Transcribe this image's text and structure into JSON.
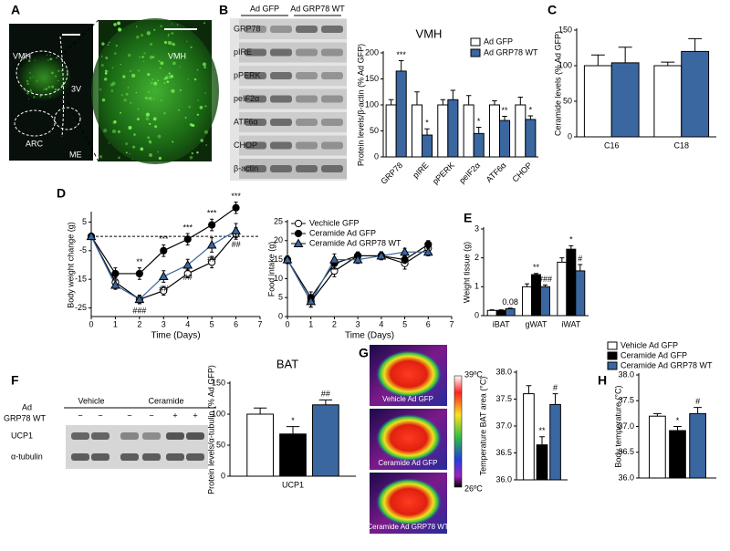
{
  "panel_labels": [
    "A",
    "B",
    "C",
    "D",
    "E",
    "F",
    "G",
    "H"
  ],
  "panel_a": {
    "labels": [
      "VMH",
      "3V",
      "ARC",
      "ME"
    ],
    "zoom_label": "VMH"
  },
  "blot_b": {
    "groups": [
      "Ad GFP",
      "Ad GRP78 WT"
    ],
    "rows": [
      "GRP78",
      "pIRE",
      "pPERK",
      "peIF2α",
      "ATF6α",
      "CHOP",
      "β-actin"
    ]
  },
  "blot_f": {
    "treatment": [
      "Ad",
      "GRP78 WT"
    ],
    "groups": [
      "Vehicle",
      "Ceramide"
    ],
    "signs": [
      "−",
      "−",
      "−",
      "−",
      "+",
      "+"
    ],
    "rows": [
      "UCP1",
      "α-tubulin"
    ]
  },
  "thermal_g": {
    "labels": [
      "Vehicle Ad GFP",
      "Ceramide Ad GFP",
      "Ceramide Ad GRP78 WT"
    ],
    "scale": [
      "39ºC",
      "26ºC"
    ]
  },
  "chart_data": [
    {
      "type": "bar",
      "title": "VMH",
      "ylabel": "Protein levels/β-actin (% Ad GFP)",
      "categories": [
        "GRP78",
        "pIRE",
        "pPERK",
        "peIF2α",
        "ATF6α",
        "CHOP"
      ],
      "series": [
        {
          "name": "Ad GFP",
          "color": "#ffffff",
          "values": [
            100,
            100,
            100,
            100,
            100,
            100
          ],
          "errors": [
            10,
            25,
            10,
            18,
            8,
            15
          ]
        },
        {
          "name": "Ad GRP78 WT",
          "color": "#3a67a0",
          "values": [
            165,
            42,
            110,
            45,
            70,
            72
          ],
          "errors": [
            20,
            12,
            18,
            12,
            8,
            7
          ],
          "sig": [
            "***",
            "*",
            null,
            "*",
            "**",
            "*"
          ]
        }
      ],
      "ylim": [
        0,
        200
      ],
      "yticks": [
        0,
        50,
        100,
        150,
        200
      ],
      "legend": "upper right",
      "rotate_labels": true
    },
    {
      "type": "bar",
      "ylabel": "Ceramide levels (% Ad GFP)",
      "categories": [
        "C16",
        "C18"
      ],
      "series": [
        {
          "color": "#ffffff",
          "values": [
            100,
            100
          ],
          "errors": [
            15,
            5
          ]
        },
        {
          "color": "#3a67a0",
          "values": [
            104,
            120
          ],
          "errors": [
            22,
            18
          ]
        }
      ],
      "ylim": [
        0,
        150
      ],
      "yticks": [
        0,
        50,
        100,
        150
      ]
    },
    {
      "type": "line",
      "ylabel": "Body weight change (g)",
      "xlabel": "Time (Days)",
      "x": [
        0,
        1,
        2,
        3,
        4,
        5,
        6
      ],
      "xlim": [
        0,
        7
      ],
      "xticks": [
        0,
        1,
        2,
        3,
        4,
        5,
        6,
        7
      ],
      "ylim": [
        -28,
        8
      ],
      "yticks": [
        -25,
        -15,
        -5,
        5
      ],
      "reference_line": 0,
      "series": [
        {
          "color": "#ffffff",
          "marker": "circle",
          "values": [
            0,
            -16,
            -22,
            -19,
            -13,
            -9,
            1
          ],
          "errors": [
            0,
            1.5,
            1.5,
            1.5,
            1.5,
            2,
            2
          ]
        },
        {
          "color": "#000000",
          "marker": "circle",
          "values": [
            0,
            -13,
            -13,
            -5,
            -1,
            4,
            10
          ],
          "errors": [
            0,
            2,
            2,
            2,
            2,
            2,
            2
          ],
          "sig_above": [
            null,
            null,
            "**",
            "***",
            "***",
            "***",
            "***"
          ]
        },
        {
          "color": "#3a67a0",
          "marker": "triangle",
          "values": [
            0,
            -17,
            -22,
            -14,
            -10,
            -3,
            2
          ],
          "errors": [
            0,
            1.5,
            1.5,
            2,
            2,
            2.5,
            2.5
          ],
          "sig_below": [
            null,
            null,
            "###",
            "##",
            "##",
            "##",
            "##"
          ]
        }
      ]
    },
    {
      "type": "line",
      "ylabel": "Food intake (g)",
      "xlabel": "Time (Days)",
      "x": [
        0,
        1,
        2,
        3,
        4,
        5,
        6
      ],
      "xlim": [
        0,
        7
      ],
      "xticks": [
        0,
        1,
        2,
        3,
        4,
        5,
        6,
        7
      ],
      "ylim": [
        0,
        25
      ],
      "yticks": [
        0,
        5,
        10,
        15,
        20,
        25
      ],
      "legend": "upper left",
      "series": [
        {
          "name": "Vechicle GFP",
          "color": "#ffffff",
          "marker": "circle",
          "values": [
            15,
            4,
            12,
            16,
            16,
            14,
            18
          ],
          "errors": [
            1,
            1.5,
            1.5,
            1,
            1,
            1.5,
            1
          ]
        },
        {
          "name": "Ceramide Ad GFP",
          "color": "#000000",
          "marker": "circle",
          "values": [
            15,
            5,
            14,
            16,
            16,
            15,
            19
          ],
          "errors": [
            1,
            1.5,
            1.5,
            1,
            1,
            1,
            1
          ]
        },
        {
          "name": "Ceramide Ad GRP78 WT",
          "color": "#3a67a0",
          "marker": "triangle",
          "values": [
            15,
            4,
            15,
            15,
            16,
            17,
            17
          ],
          "errors": [
            1,
            1.5,
            1.5,
            1,
            1,
            1,
            1
          ]
        }
      ]
    },
    {
      "type": "bar",
      "ylabel": "Weight tissue (g)",
      "categories": [
        "iBAT",
        "gWAT",
        "iWAT"
      ],
      "ylim": [
        0,
        3
      ],
      "yticks": [
        0,
        1,
        2,
        3
      ],
      "series": [
        {
          "color": "#ffffff",
          "values": [
            0.18,
            1.0,
            1.85
          ],
          "errors": [
            0.02,
            0.1,
            0.15
          ]
        },
        {
          "color": "#000000",
          "values": [
            0.18,
            1.42,
            2.3
          ],
          "errors": [
            0.02,
            0.04,
            0.12
          ],
          "sig": [
            null,
            "**",
            "*"
          ]
        },
        {
          "color": "#3a67a0",
          "values": [
            0.24,
            1.0,
            1.55
          ],
          "errors": [
            0.02,
            0.06,
            0.22
          ],
          "sig": [
            "0.08",
            "###",
            "#"
          ]
        }
      ]
    },
    {
      "type": "bar",
      "title": "BAT",
      "ylabel": "Protein levels/α-tubulin (% Ad GFP)",
      "categories": [
        "UCP1"
      ],
      "ylim": [
        0,
        150
      ],
      "yticks": [
        0,
        50,
        100,
        150
      ],
      "series": [
        {
          "color": "#ffffff",
          "values": [
            100
          ],
          "errors": [
            10
          ]
        },
        {
          "color": "#000000",
          "values": [
            68
          ],
          "errors": [
            12
          ],
          "sig": [
            "*"
          ]
        },
        {
          "color": "#3a67a0",
          "values": [
            115
          ],
          "errors": [
            8
          ],
          "sig": [
            "##"
          ]
        }
      ]
    },
    {
      "type": "bar",
      "ylabel": "Temperature BAT area (°C)",
      "categories": [
        null
      ],
      "ylim": [
        36,
        38
      ],
      "yticks": [
        {
          "value": 36,
          "label": "36.0"
        },
        36.5,
        {
          "value": 37,
          "label": "37.0"
        },
        37.5,
        {
          "value": 38,
          "label": "38.0"
        }
      ],
      "series": [
        {
          "color": "#ffffff",
          "values": [
            37.6
          ],
          "errors": [
            0.15
          ]
        },
        {
          "color": "#000000",
          "values": [
            36.65
          ],
          "errors": [
            0.15
          ],
          "sig": [
            "**"
          ]
        },
        {
          "color": "#3a67a0",
          "values": [
            37.4
          ],
          "errors": [
            0.2
          ],
          "sig": [
            "#"
          ]
        }
      ]
    },
    {
      "type": "bar",
      "ylabel": "Body temperature (°C)",
      "categories": [
        null
      ],
      "ylim": [
        36,
        38
      ],
      "yticks": [
        {
          "value": 36,
          "label": "36.0"
        },
        36.5,
        {
          "value": 37,
          "label": "37.0"
        },
        37.5,
        {
          "value": 38,
          "label": "38.0"
        }
      ],
      "legend": "top",
      "series": [
        {
          "name": "Vehicle Ad GFP",
          "color": "#ffffff",
          "values": [
            37.2
          ],
          "errors": [
            0.05
          ]
        },
        {
          "name": "Ceramide Ad GFP",
          "color": "#000000",
          "values": [
            36.92
          ],
          "errors": [
            0.08
          ],
          "sig": [
            "*"
          ]
        },
        {
          "name": "Ceramide Ad GRP78 WT",
          "color": "#3a67a0",
          "values": [
            37.25
          ],
          "errors": [
            0.12
          ],
          "sig": [
            "#"
          ]
        }
      ]
    }
  ]
}
